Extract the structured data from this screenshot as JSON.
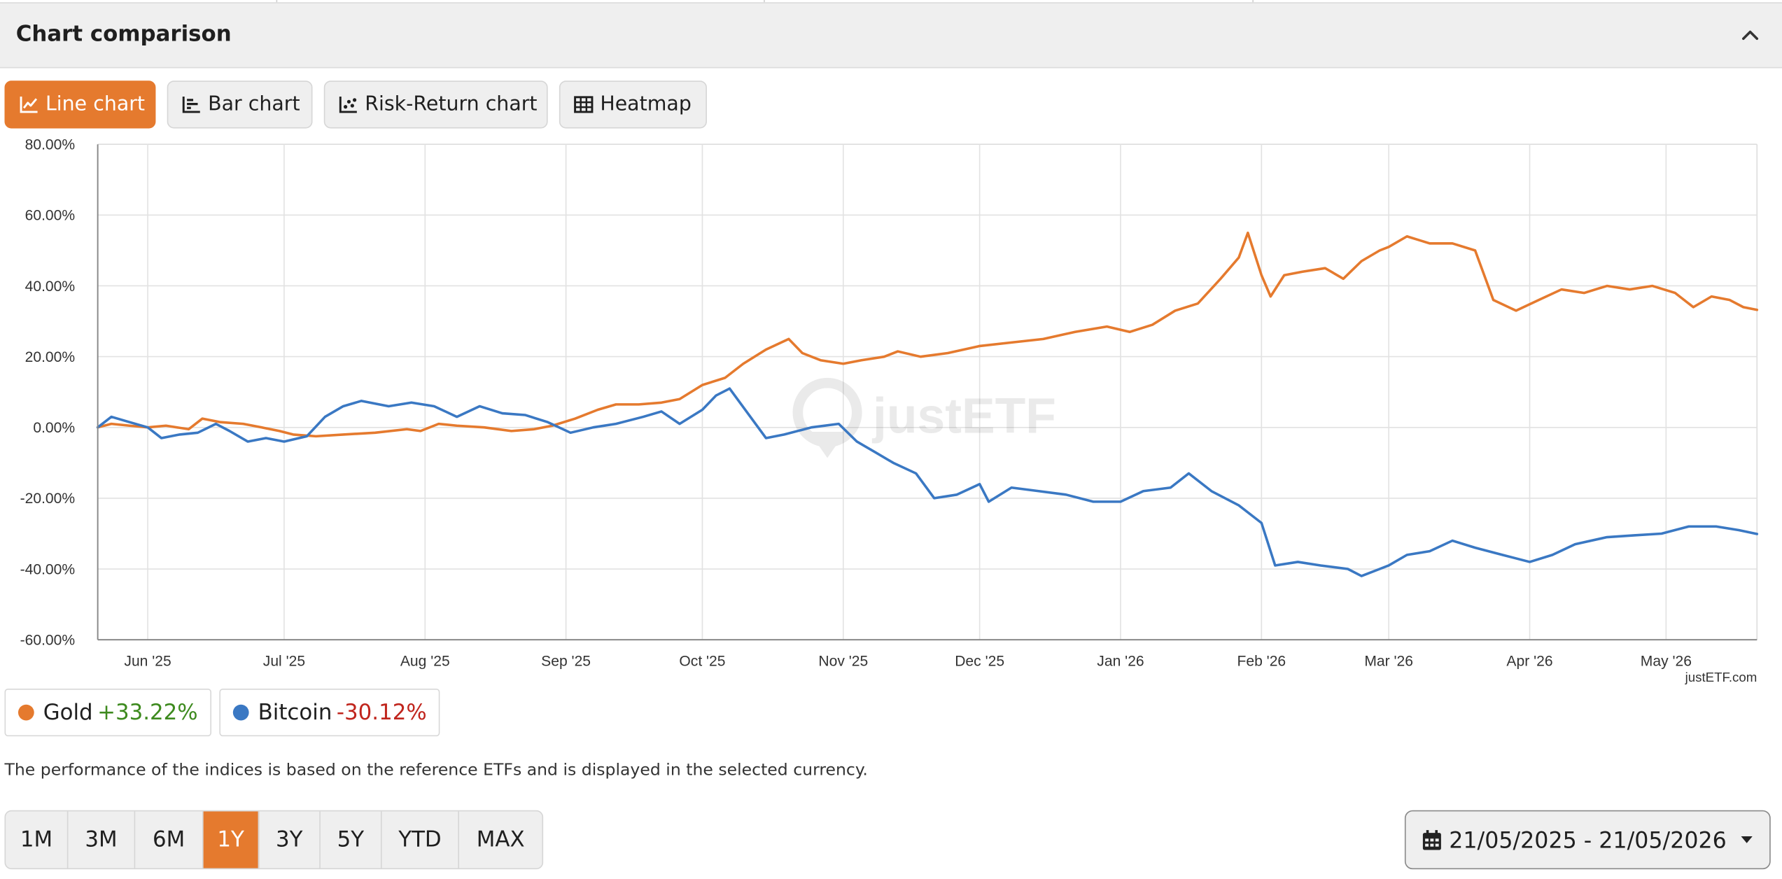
{
  "header": {
    "title": "Chart comparison"
  },
  "tabs": [
    {
      "label": "Line chart",
      "icon": "line-chart-icon",
      "active": true
    },
    {
      "label": "Bar chart",
      "icon": "bar-chart-icon",
      "active": false
    },
    {
      "label": "Risk-Return chart",
      "icon": "scatter-chart-icon",
      "active": false
    },
    {
      "label": "Heatmap",
      "icon": "table-icon",
      "active": false
    }
  ],
  "watermark": "justETF",
  "credit": "justETF.com",
  "legend": [
    {
      "name": "Gold",
      "change": "+33.22%",
      "color": "#e57a2e"
    },
    {
      "name": "Bitcoin",
      "change": "-30.12%",
      "color": "#3a78c3"
    }
  ],
  "note": "The performance of the indices is based on the reference ETFs and is displayed in the selected currency.",
  "periods": [
    "1M",
    "3M",
    "6M",
    "1Y",
    "3Y",
    "5Y",
    "YTD",
    "MAX"
  ],
  "active_period": "1Y",
  "date_range": "21/05/2025 - 21/05/2026",
  "colors": {
    "accent": "#e57a2e",
    "gold": "#e57a2e",
    "bitcoin": "#3a78c3",
    "positive": "#3d8a1e",
    "negative": "#c0251d"
  },
  "chart_data": {
    "type": "line",
    "x_range": [
      "2025-05-21",
      "2026-05-21"
    ],
    "ylim": [
      -60,
      80
    ],
    "y_ticks": [
      80,
      60,
      40,
      20,
      0,
      -20,
      -40,
      -60
    ],
    "y_tick_labels": [
      "80.00%",
      "60.00%",
      "40.00%",
      "20.00%",
      "0.00%",
      "-20.00%",
      "-40.00%",
      "-60.00%"
    ],
    "x_ticks": [
      "2025-06-01",
      "2025-07-01",
      "2025-08-01",
      "2025-09-01",
      "2025-10-01",
      "2025-11-01",
      "2025-12-01",
      "2026-01-01",
      "2026-02-01",
      "2026-03-01",
      "2026-04-01",
      "2026-05-01"
    ],
    "x_tick_labels": [
      "Jun '25",
      "Jul '25",
      "Aug '25",
      "Sep '25",
      "Oct '25",
      "Nov '25",
      "Dec '25",
      "Jan '26",
      "Feb '26",
      "Mar '26",
      "Apr '26",
      "May '26"
    ],
    "grid": true,
    "series": [
      {
        "name": "Gold",
        "color": "#e57a2e",
        "points": [
          [
            "2025-05-21",
            0
          ],
          [
            "2025-05-24",
            1
          ],
          [
            "2025-05-28",
            0.5
          ],
          [
            "2025-06-01",
            0
          ],
          [
            "2025-06-05",
            0.5
          ],
          [
            "2025-06-10",
            -0.5
          ],
          [
            "2025-06-13",
            2.5
          ],
          [
            "2025-06-17",
            1.5
          ],
          [
            "2025-06-22",
            1
          ],
          [
            "2025-06-26",
            0
          ],
          [
            "2025-06-30",
            -1
          ],
          [
            "2025-07-03",
            -2
          ],
          [
            "2025-07-08",
            -2.5
          ],
          [
            "2025-07-14",
            -2
          ],
          [
            "2025-07-21",
            -1.5
          ],
          [
            "2025-07-28",
            -0.5
          ],
          [
            "2025-07-31",
            -1
          ],
          [
            "2025-08-04",
            1
          ],
          [
            "2025-08-08",
            0.5
          ],
          [
            "2025-08-14",
            0
          ],
          [
            "2025-08-20",
            -1
          ],
          [
            "2025-08-25",
            -0.5
          ],
          [
            "2025-08-29",
            0.5
          ],
          [
            "2025-09-03",
            2.5
          ],
          [
            "2025-09-08",
            5
          ],
          [
            "2025-09-12",
            6.5
          ],
          [
            "2025-09-17",
            6.5
          ],
          [
            "2025-09-22",
            7
          ],
          [
            "2025-09-26",
            8
          ],
          [
            "2025-10-01",
            12
          ],
          [
            "2025-10-06",
            14
          ],
          [
            "2025-10-10",
            18
          ],
          [
            "2025-10-15",
            22
          ],
          [
            "2025-10-20",
            25
          ],
          [
            "2025-10-23",
            21
          ],
          [
            "2025-10-27",
            19
          ],
          [
            "2025-11-01",
            18
          ],
          [
            "2025-11-05",
            19
          ],
          [
            "2025-11-10",
            20
          ],
          [
            "2025-11-13",
            21.5
          ],
          [
            "2025-11-18",
            20
          ],
          [
            "2025-11-24",
            21
          ],
          [
            "2025-12-01",
            23
          ],
          [
            "2025-12-08",
            24
          ],
          [
            "2025-12-15",
            25
          ],
          [
            "2025-12-22",
            27
          ],
          [
            "2025-12-29",
            28.5
          ],
          [
            "2026-01-03",
            27
          ],
          [
            "2026-01-08",
            29
          ],
          [
            "2026-01-13",
            33
          ],
          [
            "2026-01-18",
            35
          ],
          [
            "2026-01-23",
            42
          ],
          [
            "2026-01-27",
            48
          ],
          [
            "2026-01-29",
            55
          ],
          [
            "2026-02-01",
            43
          ],
          [
            "2026-02-03",
            37
          ],
          [
            "2026-02-06",
            43
          ],
          [
            "2026-02-10",
            44
          ],
          [
            "2026-02-15",
            45
          ],
          [
            "2026-02-19",
            42
          ],
          [
            "2026-02-23",
            47
          ],
          [
            "2026-02-27",
            50
          ],
          [
            "2026-03-01",
            51
          ],
          [
            "2026-03-05",
            54
          ],
          [
            "2026-03-10",
            52
          ],
          [
            "2026-03-15",
            52
          ],
          [
            "2026-03-20",
            50
          ],
          [
            "2026-03-24",
            36
          ],
          [
            "2026-03-29",
            33
          ],
          [
            "2026-04-03",
            36
          ],
          [
            "2026-04-08",
            39
          ],
          [
            "2026-04-13",
            38
          ],
          [
            "2026-04-18",
            40
          ],
          [
            "2026-04-23",
            39
          ],
          [
            "2026-04-28",
            40
          ],
          [
            "2026-05-03",
            38
          ],
          [
            "2026-05-07",
            34
          ],
          [
            "2026-05-11",
            37
          ],
          [
            "2026-05-15",
            36
          ],
          [
            "2026-05-18",
            34
          ],
          [
            "2026-05-21",
            33.2
          ]
        ]
      },
      {
        "name": "Bitcoin",
        "color": "#3a78c3",
        "points": [
          [
            "2025-05-21",
            0
          ],
          [
            "2025-05-24",
            3
          ],
          [
            "2025-05-28",
            1.5
          ],
          [
            "2025-06-01",
            0
          ],
          [
            "2025-06-04",
            -3
          ],
          [
            "2025-06-08",
            -2
          ],
          [
            "2025-06-12",
            -1.5
          ],
          [
            "2025-06-16",
            1
          ],
          [
            "2025-06-19",
            -1
          ],
          [
            "2025-06-23",
            -4
          ],
          [
            "2025-06-27",
            -3
          ],
          [
            "2025-07-01",
            -4
          ],
          [
            "2025-07-06",
            -2.5
          ],
          [
            "2025-07-10",
            3
          ],
          [
            "2025-07-14",
            6
          ],
          [
            "2025-07-18",
            7.5
          ],
          [
            "2025-07-24",
            6
          ],
          [
            "2025-07-29",
            7
          ],
          [
            "2025-08-03",
            6
          ],
          [
            "2025-08-08",
            3
          ],
          [
            "2025-08-13",
            6
          ],
          [
            "2025-08-18",
            4
          ],
          [
            "2025-08-23",
            3.5
          ],
          [
            "2025-08-28",
            1.5
          ],
          [
            "2025-09-02",
            -1.5
          ],
          [
            "2025-09-07",
            0
          ],
          [
            "2025-09-12",
            1
          ],
          [
            "2025-09-18",
            3
          ],
          [
            "2025-09-22",
            4.5
          ],
          [
            "2025-09-26",
            1
          ],
          [
            "2025-10-01",
            5
          ],
          [
            "2025-10-04",
            9
          ],
          [
            "2025-10-07",
            11
          ],
          [
            "2025-10-11",
            4
          ],
          [
            "2025-10-15",
            -3
          ],
          [
            "2025-10-19",
            -2
          ],
          [
            "2025-10-25",
            0
          ],
          [
            "2025-10-31",
            1
          ],
          [
            "2025-11-04",
            -4
          ],
          [
            "2025-11-08",
            -7
          ],
          [
            "2025-11-12",
            -10
          ],
          [
            "2025-11-17",
            -13
          ],
          [
            "2025-11-21",
            -20
          ],
          [
            "2025-11-26",
            -19
          ],
          [
            "2025-12-01",
            -16
          ],
          [
            "2025-12-03",
            -21
          ],
          [
            "2025-12-08",
            -17
          ],
          [
            "2025-12-14",
            -18
          ],
          [
            "2025-12-20",
            -19
          ],
          [
            "2025-12-26",
            -21
          ],
          [
            "2026-01-01",
            -21
          ],
          [
            "2026-01-06",
            -18
          ],
          [
            "2026-01-12",
            -17
          ],
          [
            "2026-01-16",
            -13
          ],
          [
            "2026-01-21",
            -18
          ],
          [
            "2026-01-27",
            -22
          ],
          [
            "2026-02-01",
            -27
          ],
          [
            "2026-02-04",
            -39
          ],
          [
            "2026-02-09",
            -38
          ],
          [
            "2026-02-14",
            -39
          ],
          [
            "2026-02-20",
            -40
          ],
          [
            "2026-02-23",
            -42
          ],
          [
            "2026-02-27",
            -40
          ],
          [
            "2026-03-01",
            -39
          ],
          [
            "2026-03-05",
            -36
          ],
          [
            "2026-03-10",
            -35
          ],
          [
            "2026-03-15",
            -32
          ],
          [
            "2026-03-20",
            -34
          ],
          [
            "2026-03-26",
            -36
          ],
          [
            "2026-04-01",
            -38
          ],
          [
            "2026-04-06",
            -36
          ],
          [
            "2026-04-11",
            -33
          ],
          [
            "2026-04-18",
            -31
          ],
          [
            "2026-04-24",
            -30.5
          ],
          [
            "2026-04-30",
            -30
          ],
          [
            "2026-05-06",
            -28
          ],
          [
            "2026-05-12",
            -28
          ],
          [
            "2026-05-17",
            -29
          ],
          [
            "2026-05-21",
            -30.1
          ]
        ]
      }
    ]
  }
}
